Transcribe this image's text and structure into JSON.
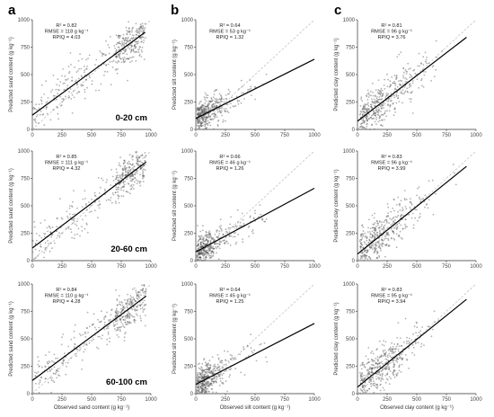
{
  "figure": {
    "column_letters": [
      "a",
      "b",
      "c"
    ],
    "depth_labels": [
      "0-20 cm",
      "20-60 cm",
      "60-100 cm"
    ]
  },
  "chart_data": [
    {
      "type": "scatter",
      "panel": "a1",
      "xlabel": "",
      "ylabel": "Predicted sand content (g kg⁻¹)",
      "xlim": [
        0,
        1000
      ],
      "ylim": [
        0,
        1000
      ],
      "ticks": [
        "0",
        "250",
        "500",
        "750",
        "1000"
      ],
      "stats": {
        "r2": "R² = 0.82",
        "rmse": "RMSE = 118 g kg⁻¹",
        "rpiq": "RPIQ = 4.03"
      },
      "depth": "0-20 cm",
      "fit": {
        "x0": 0,
        "y0": 130,
        "x1": 950,
        "y1": 885
      },
      "one_to_one": true,
      "point_color": "#555555"
    },
    {
      "type": "scatter",
      "panel": "b1",
      "xlabel": "",
      "ylabel": "Predicted silt content (g kg⁻¹)",
      "xlim": [
        0,
        1000
      ],
      "ylim": [
        0,
        1000
      ],
      "ticks": [
        "0",
        "250",
        "500",
        "750",
        "1000"
      ],
      "stats": {
        "r2": "R² = 0.64",
        "rmse": "RMSE = 53 g kg⁻¹",
        "rpiq": "RPIQ = 1.32"
      },
      "fit": {
        "x0": 0,
        "y0": 100,
        "x1": 1000,
        "y1": 640
      },
      "one_to_one": true,
      "point_color": "#555555"
    },
    {
      "type": "scatter",
      "panel": "c1",
      "xlabel": "",
      "ylabel": "Predicted clay content (g kg⁻¹)",
      "xlim": [
        0,
        1000
      ],
      "ylim": [
        0,
        1000
      ],
      "ticks": [
        "0",
        "250",
        "500",
        "750",
        "1000"
      ],
      "stats": {
        "r2": "R² = 0.81",
        "rmse": "RMSE = 96 g kg⁻¹",
        "rpiq": "RPIQ = 3.76"
      },
      "fit": {
        "x0": 0,
        "y0": 75,
        "x1": 920,
        "y1": 840
      },
      "one_to_one": true,
      "point_color": "#555555"
    },
    {
      "type": "scatter",
      "panel": "a2",
      "xlabel": "",
      "ylabel": "Predicted sand content (g kg⁻¹)",
      "xlim": [
        0,
        1000
      ],
      "ylim": [
        0,
        1000
      ],
      "ticks": [
        "0",
        "250",
        "500",
        "750",
        "1000"
      ],
      "stats": {
        "r2": "R² = 0.85",
        "rmse": "RMSE = 111 g kg⁻¹",
        "rpiq": "RPIQ = 4.32"
      },
      "depth": "20-60 cm",
      "fit": {
        "x0": 0,
        "y0": 115,
        "x1": 960,
        "y1": 900
      },
      "one_to_one": true,
      "point_color": "#555555"
    },
    {
      "type": "scatter",
      "panel": "b2",
      "xlabel": "",
      "ylabel": "Predicted silt content (g kg⁻¹)",
      "xlim": [
        0,
        1000
      ],
      "ylim": [
        0,
        1000
      ],
      "ticks": [
        "0",
        "250",
        "500",
        "750",
        "1000"
      ],
      "stats": {
        "r2": "R² = 0.66",
        "rmse": "RMSE = 46 g kg⁻¹",
        "rpiq": "RPIQ = 1.26"
      },
      "fit": {
        "x0": 0,
        "y0": 80,
        "x1": 1000,
        "y1": 660
      },
      "one_to_one": true,
      "point_color": "#555555"
    },
    {
      "type": "scatter",
      "panel": "c2",
      "xlabel": "",
      "ylabel": "Predicted clay content (g kg⁻¹)",
      "xlim": [
        0,
        1000
      ],
      "ylim": [
        0,
        1000
      ],
      "ticks": [
        "0",
        "250",
        "500",
        "750",
        "1000"
      ],
      "stats": {
        "r2": "R² = 0.83",
        "rmse": "RMSE = 96 g kg⁻¹",
        "rpiq": "RPIQ = 3.99"
      },
      "fit": {
        "x0": 0,
        "y0": 60,
        "x1": 920,
        "y1": 860
      },
      "one_to_one": true,
      "point_color": "#555555"
    },
    {
      "type": "scatter",
      "panel": "a3",
      "xlabel": "Observed sand content (g kg⁻¹)",
      "ylabel": "Predicted sand content (g kg⁻¹)",
      "xlim": [
        0,
        1000
      ],
      "ylim": [
        0,
        1000
      ],
      "ticks": [
        "0",
        "250",
        "500",
        "750",
        "1000"
      ],
      "stats": {
        "r2": "R² = 0.84",
        "rmse": "RMSE = 110 g kg⁻¹",
        "rpiq": "RPIQ = 4.28"
      },
      "depth": "60-100 cm",
      "fit": {
        "x0": 0,
        "y0": 120,
        "x1": 960,
        "y1": 890
      },
      "one_to_one": true,
      "point_color": "#555555"
    },
    {
      "type": "scatter",
      "panel": "b3",
      "xlabel": "Observed silt content (g kg⁻¹)",
      "ylabel": "Predicted silt content (g kg⁻¹)",
      "xlim": [
        0,
        1000
      ],
      "ylim": [
        0,
        1000
      ],
      "ticks": [
        "0",
        "250",
        "500",
        "750",
        "1000"
      ],
      "stats": {
        "r2": "R² = 0.64",
        "rmse": "RMSE = 45 g kg⁻¹",
        "rpiq": "RPIQ = 1.25"
      },
      "fit": {
        "x0": 0,
        "y0": 85,
        "x1": 1000,
        "y1": 640
      },
      "one_to_one": true,
      "point_color": "#555555"
    },
    {
      "type": "scatter",
      "panel": "c3",
      "xlabel": "Observed clay content (g kg⁻¹)",
      "ylabel": "Predicted clay content (g kg⁻¹)",
      "xlim": [
        0,
        1000
      ],
      "ylim": [
        0,
        1000
      ],
      "ticks": [
        "0",
        "250",
        "500",
        "750",
        "1000"
      ],
      "stats": {
        "r2": "R² = 0.83",
        "rmse": "RMSE = 95 g kg⁻¹",
        "rpiq": "RPIQ = 3.94"
      },
      "fit": {
        "x0": 0,
        "y0": 60,
        "x1": 920,
        "y1": 860
      },
      "one_to_one": true,
      "point_color": "#555555"
    }
  ]
}
